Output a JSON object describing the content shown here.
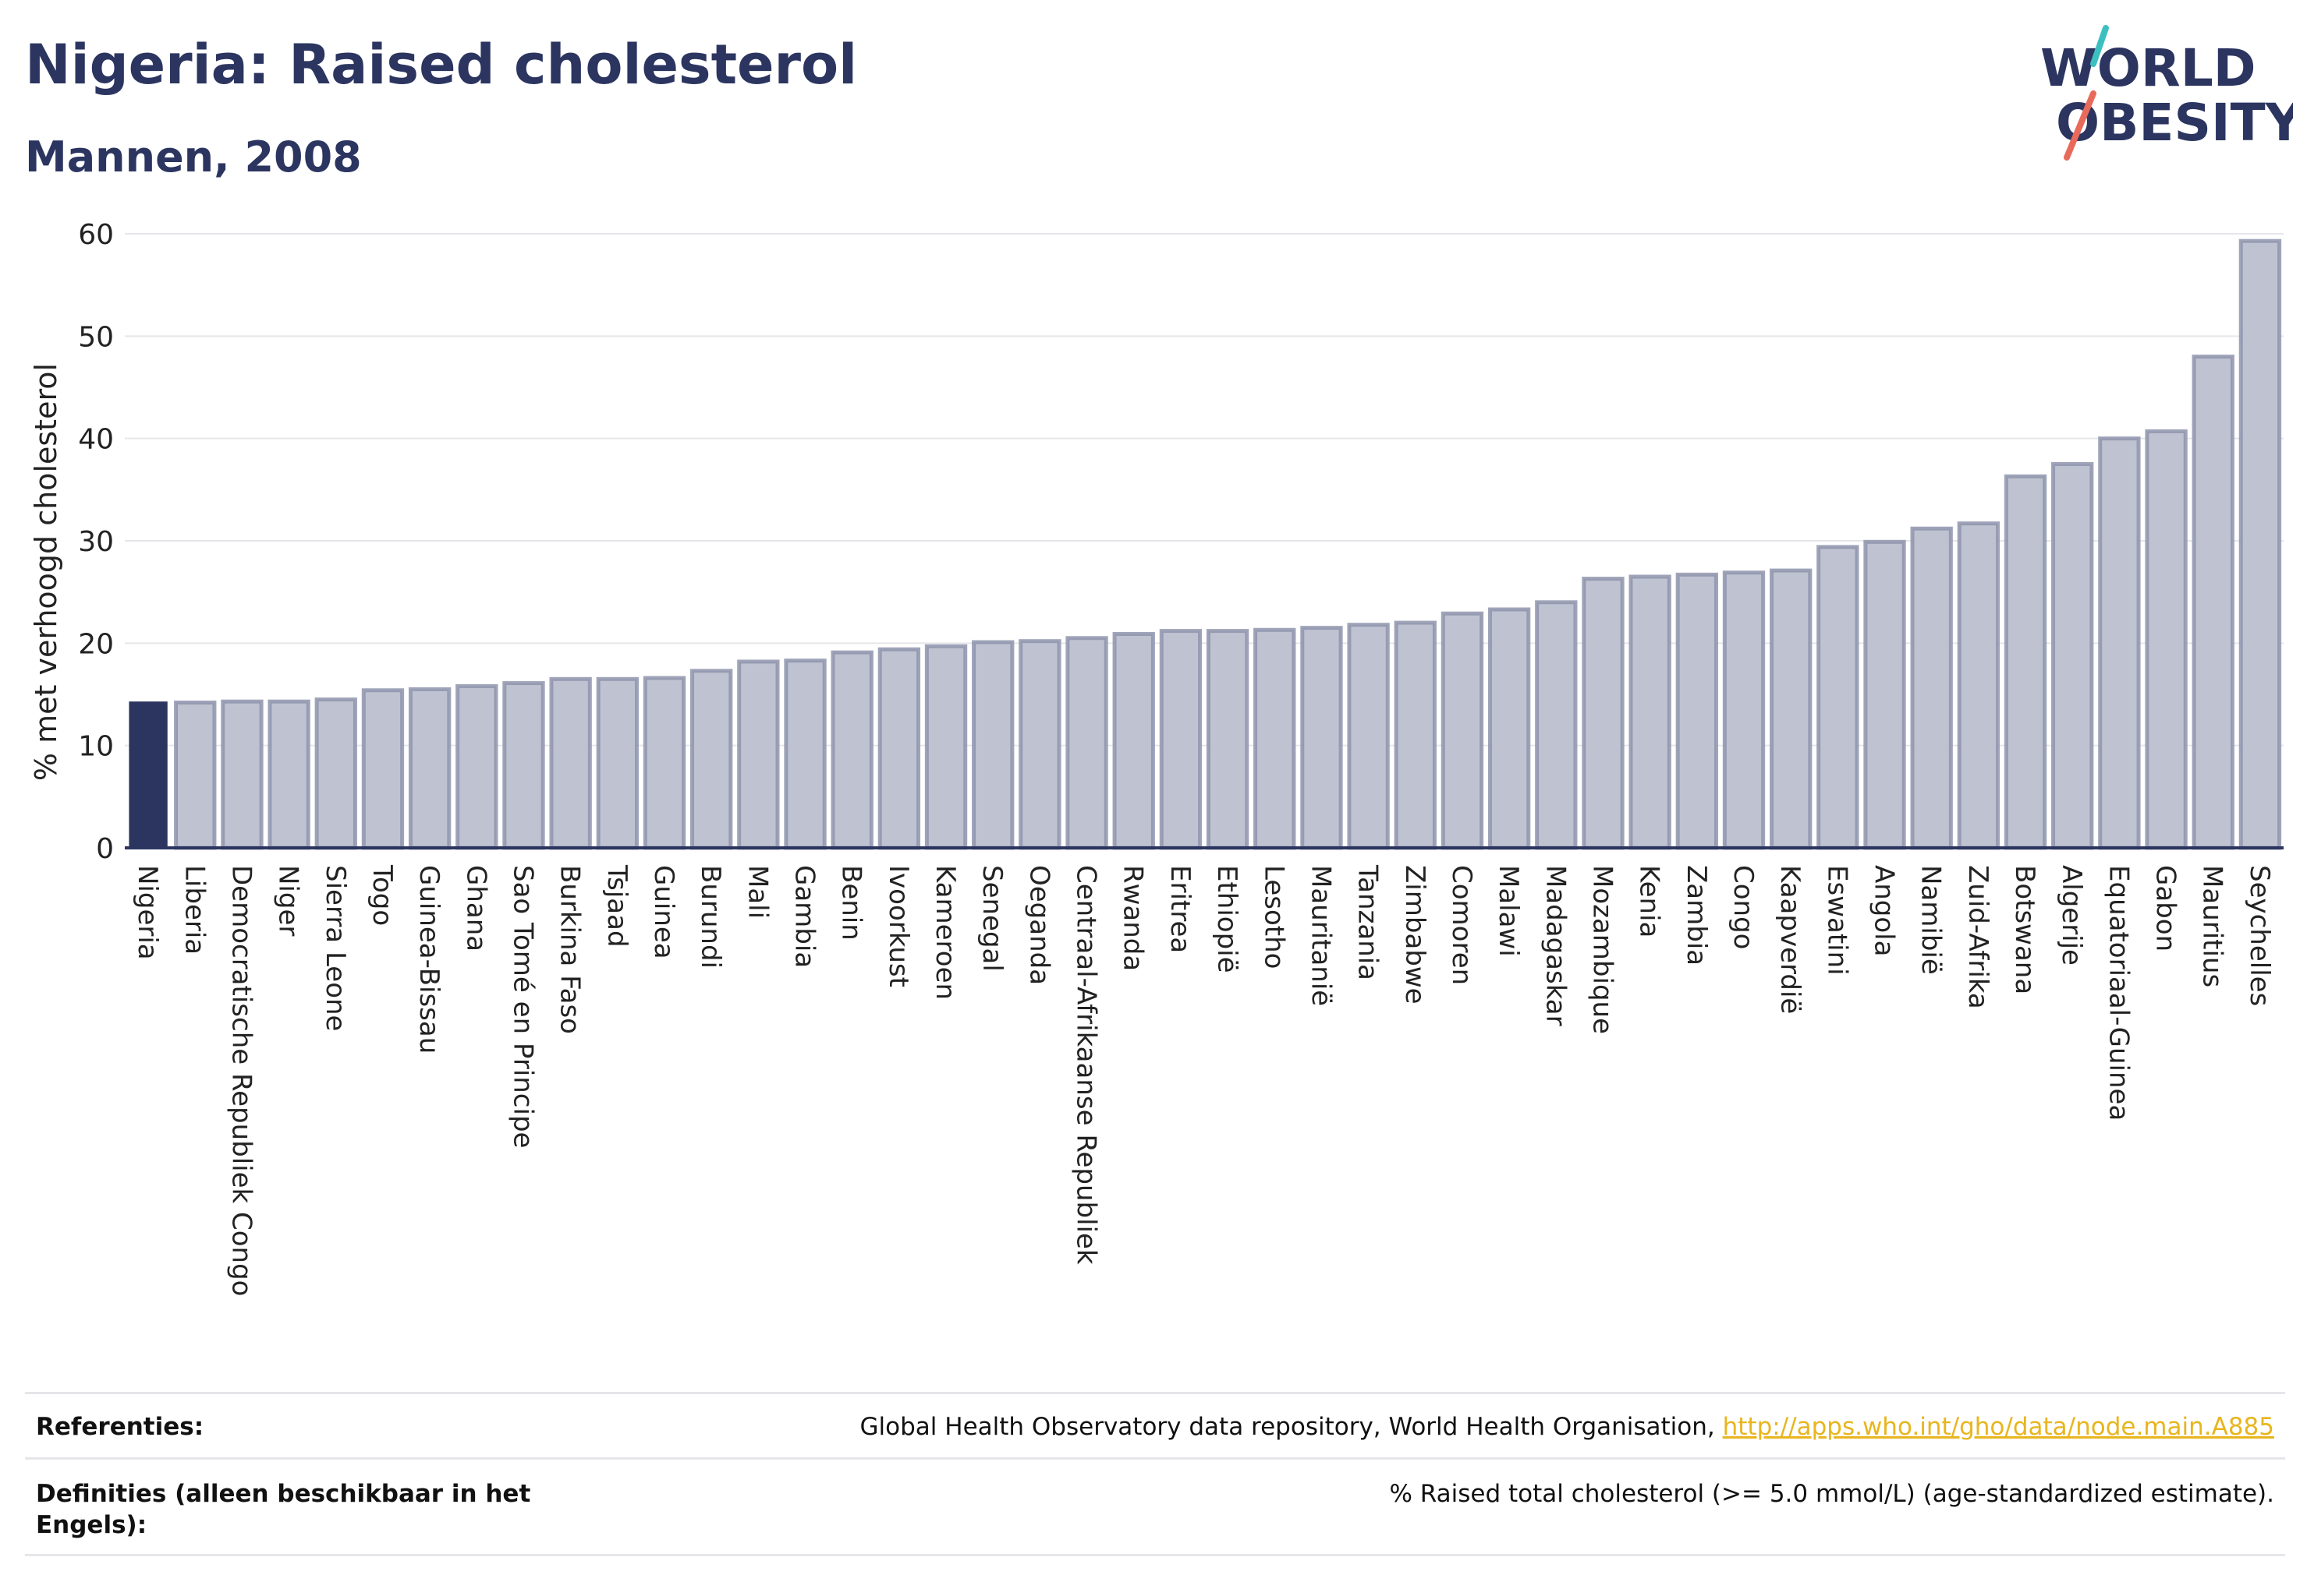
{
  "header": {
    "title": "Nigeria: Raised cholesterol",
    "subtitle": "Mannen, 2008"
  },
  "logo": {
    "line1": "WORLD",
    "line2": "OBESITY"
  },
  "colors": {
    "highlight": "#2b3560",
    "bar_fill": "#bfc3d1",
    "bar_stroke": "#8e94ad",
    "grid": "#e6e6ea",
    "axis": "#2b3560",
    "logo_teal": "#3cbfc0",
    "logo_red": "#e86a5a"
  },
  "chart_data": {
    "type": "bar",
    "ylabel": "% met verhoogd cholesterol",
    "ylim": [
      0,
      60
    ],
    "yticks": [
      0,
      10,
      20,
      30,
      40,
      50,
      60
    ],
    "grid": true,
    "highlight": "Nigeria",
    "categories": [
      "Nigeria",
      "Liberia",
      "Democratische Republiek Congo",
      "Niger",
      "Sierra Leone",
      "Togo",
      "Guinea-Bissau",
      "Ghana",
      "Sao Tomé en Principe",
      "Burkina Faso",
      "Tsjaad",
      "Guinea",
      "Burundi",
      "Mali",
      "Gambia",
      "Benin",
      "Ivoorkust",
      "Kameroen",
      "Senegal",
      "Oeganda",
      "Centraal-Afrikaanse Republiek",
      "Rwanda",
      "Eritrea",
      "Ethiopië",
      "Lesotho",
      "Mauritanië",
      "Tanzania",
      "Zimbabwe",
      "Comoren",
      "Malawi",
      "Madagaskar",
      "Mozambique",
      "Kenia",
      "Zambia",
      "Congo",
      "Kaapverdië",
      "Eswatini",
      "Angola",
      "Namibië",
      "Zuid-Afrika",
      "Botswana",
      "Algerije",
      "Equatoriaal-Guinea",
      "Gabon",
      "Mauritius",
      "Seychelles"
    ],
    "values": [
      14.3,
      14.2,
      14.3,
      14.3,
      14.5,
      15.4,
      15.5,
      15.8,
      16.1,
      16.5,
      16.5,
      16.6,
      17.3,
      18.2,
      18.3,
      19.1,
      19.4,
      19.7,
      20.1,
      20.2,
      20.5,
      20.9,
      21.2,
      21.2,
      21.3,
      21.5,
      21.8,
      22.0,
      22.9,
      23.3,
      24.0,
      26.3,
      26.5,
      26.7,
      26.9,
      27.1,
      29.4,
      29.9,
      31.2,
      31.7,
      36.3,
      37.5,
      40.0,
      40.7,
      48.0,
      59.3
    ]
  },
  "footer": {
    "references_label": "Referenties:",
    "references_text": "Global Health Observatory data repository, World Health Organisation, ",
    "references_link": "http://apps.who.int/gho/data/node.main.A885",
    "definitions_label": "Definities (alleen beschikbaar in het Engels):",
    "definitions_text": "% Raised total cholesterol (>= 5.0 mmol/L) (age-standardized estimate)."
  }
}
